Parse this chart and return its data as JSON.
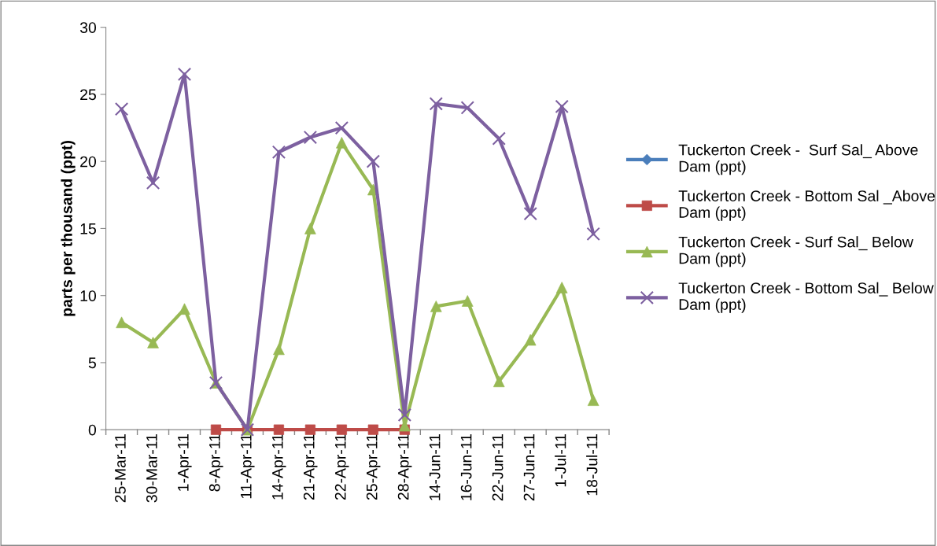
{
  "chart_data": {
    "type": "line",
    "ylabel": "parts per thousand (ppt)",
    "categories": [
      "25-Mar-11",
      "30-Mar-11",
      "1-Apr-11",
      "8-Apr-11",
      "11-Apr-11",
      "14-Apr-11",
      "21-Apr-11",
      "22-Apr-11",
      "25-Apr-11",
      "28-Apr-11",
      "14-Jun-11",
      "16-Jun-11",
      "22-Jun-11",
      "27-Jun-11",
      "1-Jul-11",
      "18-Jul-11"
    ],
    "ylim": [
      0,
      30
    ],
    "yticks": [
      0,
      5,
      10,
      15,
      20,
      25,
      30
    ],
    "grid": false,
    "legend": "right",
    "series": [
      {
        "name": "Tuckerton Creek -  Surf Sal_ Above Dam (ppt)",
        "color": "#4a7ebb",
        "marker": "diamond",
        "values": [
          null,
          null,
          null,
          null,
          null,
          null,
          null,
          null,
          null,
          null,
          null,
          null,
          null,
          null,
          null,
          null
        ]
      },
      {
        "name": "Tuckerton Creek - Bottom Sal _Above Dam (ppt)",
        "color": "#be4b48",
        "marker": "square",
        "values": [
          null,
          null,
          null,
          0,
          0,
          0,
          0,
          0,
          0,
          0,
          null,
          null,
          null,
          null,
          null,
          null
        ]
      },
      {
        "name": "Tuckerton Creek - Surf Sal_ Below Dam (ppt)",
        "color": "#98b954",
        "marker": "triangle",
        "values": [
          8.0,
          6.5,
          9.0,
          3.5,
          0,
          6.0,
          15.0,
          21.4,
          17.9,
          0.3,
          9.2,
          9.6,
          3.6,
          6.7,
          10.6,
          2.2
        ]
      },
      {
        "name": "Tuckerton Creek - Bottom Sal_ Below Dam (ppt)",
        "color": "#7d60a0",
        "marker": "cross",
        "values": [
          23.9,
          18.4,
          26.5,
          3.5,
          0,
          20.7,
          21.8,
          22.5,
          20.0,
          1.1,
          24.3,
          24.0,
          21.7,
          16.1,
          24.1,
          14.6
        ]
      }
    ]
  }
}
